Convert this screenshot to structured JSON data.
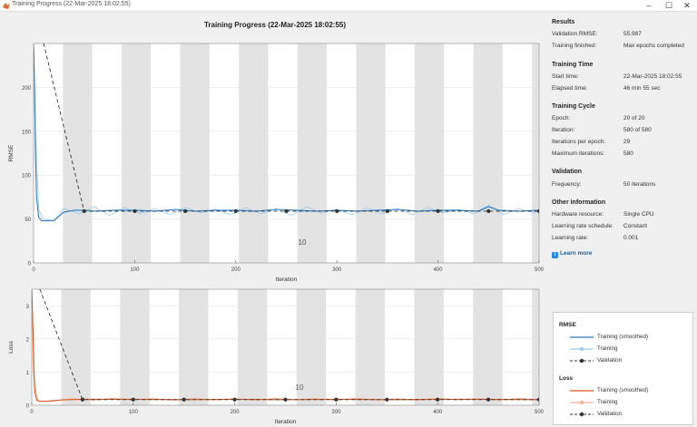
{
  "window": {
    "title": "Training Progress (22-Mar-2025 18:02:55)",
    "minimize_glyph": "–",
    "maximize_glyph": "☐",
    "close_glyph": "✕"
  },
  "plot": {
    "title": "Training Progress (22-Mar-2025 18:02:55)",
    "top_annotation": "10",
    "bottom_annotation": "10"
  },
  "chart_data": [
    {
      "type": "line",
      "ylabel": "RMSE",
      "xlabel": "Iteration",
      "xlim": [
        0,
        500
      ],
      "ylim": [
        0,
        250
      ],
      "xticks": [
        0,
        100,
        200,
        300,
        400,
        500
      ],
      "yticks": [
        0,
        50,
        100,
        150,
        200
      ],
      "epoch_band_width": 29,
      "series": [
        {
          "name": "Training (smoothed)",
          "color": "#2b7bc0",
          "x": [
            0,
            1,
            2,
            3,
            5,
            8,
            12,
            20,
            30,
            40,
            50,
            60,
            80,
            100,
            120,
            140,
            160,
            180,
            200,
            220,
            240,
            260,
            280,
            300,
            320,
            340,
            360,
            380,
            400,
            420,
            440,
            450,
            460,
            480,
            500
          ],
          "y": [
            250,
            200,
            120,
            75,
            52,
            48,
            48,
            48,
            58,
            60,
            60,
            59,
            60,
            60,
            59,
            61,
            59,
            60,
            60,
            59,
            61,
            60,
            59,
            60,
            59,
            60,
            61,
            59,
            60,
            60,
            59,
            64,
            60,
            59,
            60
          ]
        },
        {
          "name": "Training",
          "color": "#9dc8e8",
          "x": [
            0,
            2,
            5,
            10,
            20,
            30,
            45,
            60,
            75,
            90,
            105,
            120,
            135,
            150,
            165,
            180,
            195,
            210,
            225,
            240,
            255,
            270,
            285,
            300,
            315,
            330,
            345,
            360,
            375,
            390,
            405,
            420,
            435,
            450,
            465,
            480,
            495,
            500
          ],
          "y": [
            250,
            150,
            60,
            50,
            48,
            62,
            56,
            64,
            54,
            63,
            56,
            62,
            55,
            63,
            57,
            61,
            55,
            63,
            56,
            62,
            54,
            64,
            57,
            61,
            55,
            63,
            56,
            62,
            55,
            63,
            57,
            61,
            56,
            66,
            55,
            62,
            57,
            60
          ]
        },
        {
          "name": "Validation",
          "color": "#333333",
          "x": [
            10,
            50,
            100,
            150,
            200,
            250,
            300,
            350,
            400,
            450,
            500
          ],
          "y": [
            250,
            59,
            59,
            59,
            59,
            59,
            59,
            59,
            59,
            59,
            59
          ]
        }
      ]
    },
    {
      "type": "line",
      "ylabel": "Loss",
      "xlabel": "Iteration",
      "xlim": [
        0,
        500
      ],
      "ylim": [
        0,
        3.5
      ],
      "xticks": [
        0,
        100,
        200,
        300,
        400,
        500
      ],
      "yticks": [
        0,
        1,
        2,
        3
      ],
      "epoch_band_width": 29,
      "series": [
        {
          "name": "Training (smoothed)",
          "color": "#d9541a",
          "x": [
            0,
            1,
            2,
            3,
            5,
            8,
            15,
            30,
            50,
            100,
            150,
            200,
            250,
            300,
            350,
            400,
            450,
            500
          ],
          "y": [
            3.5,
            2.5,
            1.0,
            0.4,
            0.15,
            0.12,
            0.12,
            0.16,
            0.18,
            0.18,
            0.17,
            0.18,
            0.17,
            0.18,
            0.17,
            0.18,
            0.18,
            0.17
          ]
        },
        {
          "name": "Training",
          "color": "#f2b29b",
          "x": [
            0,
            3,
            6,
            20,
            40,
            60,
            80,
            100,
            120,
            140,
            160,
            180,
            200,
            220,
            240,
            260,
            280,
            300,
            320,
            340,
            360,
            380,
            400,
            420,
            440,
            460,
            480,
            500
          ],
          "y": [
            3.5,
            0.6,
            0.12,
            0.12,
            0.2,
            0.15,
            0.21,
            0.16,
            0.2,
            0.15,
            0.21,
            0.16,
            0.2,
            0.15,
            0.21,
            0.16,
            0.2,
            0.15,
            0.21,
            0.16,
            0.2,
            0.15,
            0.21,
            0.16,
            0.2,
            0.15,
            0.21,
            0.17
          ]
        },
        {
          "name": "Validation",
          "color": "#333333",
          "x": [
            8,
            50,
            100,
            150,
            200,
            250,
            300,
            350,
            400,
            450,
            500
          ],
          "y": [
            3.5,
            0.17,
            0.17,
            0.17,
            0.17,
            0.17,
            0.17,
            0.17,
            0.17,
            0.17,
            0.17
          ]
        }
      ]
    }
  ],
  "results": {
    "title": "Results",
    "rows": [
      {
        "label": "Validation RMSE:",
        "value": "55.987"
      },
      {
        "label": "Training finished:",
        "value": "Max epochs completed"
      }
    ]
  },
  "training_time": {
    "title": "Training Time",
    "rows": [
      {
        "label": "Start time:",
        "value": "22-Mar-2025 18:02:55"
      },
      {
        "label": "Elapsed time:",
        "value": "46 min 55 sec"
      }
    ]
  },
  "training_cycle": {
    "title": "Training Cycle",
    "rows": [
      {
        "label": "Epoch:",
        "value": "20 of 20"
      },
      {
        "label": "Iteration:",
        "value": "580 of 580"
      },
      {
        "label": "Iterations per epoch:",
        "value": "29"
      },
      {
        "label": "Maximum iterations:",
        "value": "580"
      }
    ]
  },
  "validation": {
    "title": "Validation",
    "rows": [
      {
        "label": "Frequency:",
        "value": "50 iterations"
      }
    ]
  },
  "other_info": {
    "title": "Other Information",
    "rows": [
      {
        "label": "Hardware resource:",
        "value": "Single CPU"
      },
      {
        "label": "Learning rate schedule:",
        "value": "Constant"
      },
      {
        "label": "Learning rate:",
        "value": "0.001"
      }
    ]
  },
  "learn_more": {
    "icon": "info-icon",
    "label": "Learn more"
  },
  "legend": {
    "rmse_title": "RMSE",
    "loss_title": "Loss",
    "rmse_items": [
      "Training (smoothed)",
      "Training",
      "Validation"
    ],
    "loss_items": [
      "Training (smoothed)",
      "Training",
      "Validation"
    ]
  },
  "colors": {
    "rmse_smoothed": "#2b7bc0",
    "rmse_raw": "#9dc8e8",
    "loss_smoothed": "#d9541a",
    "loss_raw": "#f2b29b",
    "validation": "#333333",
    "epoch_band": "#e3e3e3"
  }
}
